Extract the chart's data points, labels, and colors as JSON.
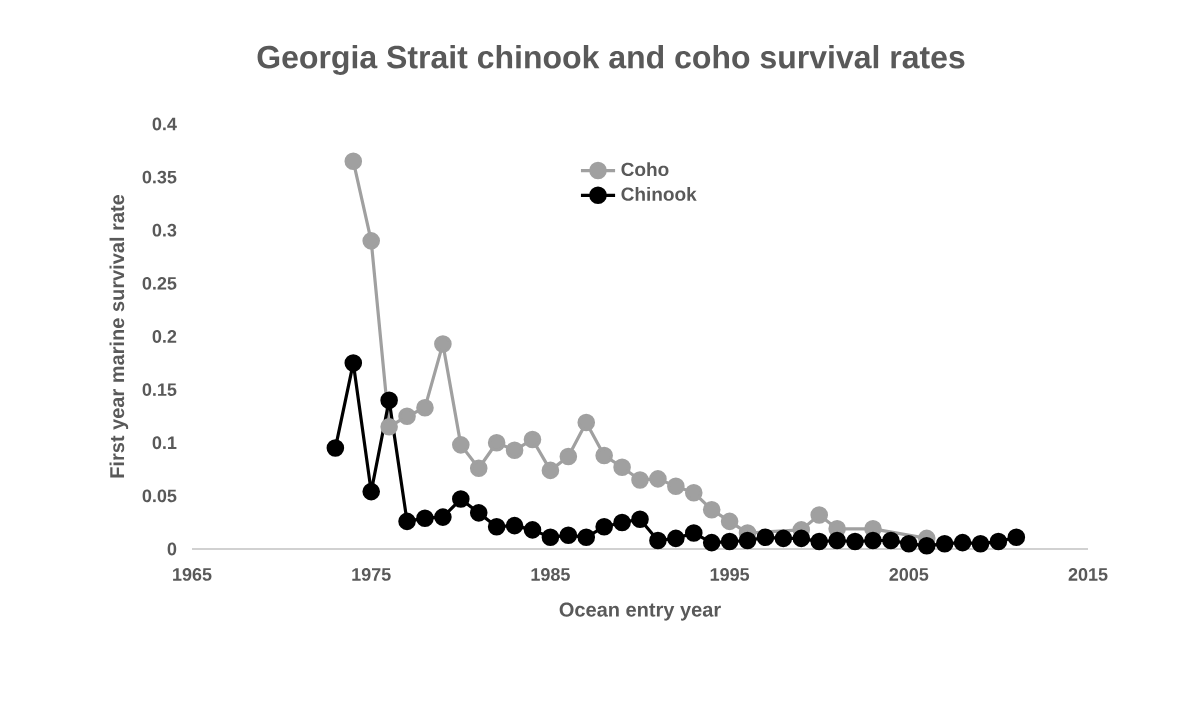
{
  "chart_data": {
    "type": "line",
    "title": "Georgia Strait chinook and coho survival rates",
    "xlabel": "Ocean entry year",
    "ylabel": "First year marine survival rate",
    "xlim": [
      1965,
      2015
    ],
    "xticks": [
      1965,
      1975,
      1985,
      1995,
      2005,
      2015
    ],
    "ylim": [
      0,
      0.4
    ],
    "yticks": [
      0,
      0.05,
      0.1,
      0.15,
      0.2,
      0.25,
      0.3,
      0.35,
      0.4
    ],
    "legend": "top",
    "marker": "circle",
    "line_style": "solid",
    "series": [
      {
        "name": "Coho",
        "color": "#a0a0a0",
        "x": [
          1974,
          1975,
          1976,
          1977,
          1978,
          1979,
          1980,
          1981,
          1982,
          1983,
          1984,
          1985,
          1986,
          1987,
          1988,
          1989,
          1990,
          1991,
          1992,
          1993,
          1994,
          1995,
          1996,
          1997,
          1998,
          1999,
          2000,
          2001,
          2002,
          2003,
          2004,
          2005,
          2006
        ],
        "values": [
          0.365,
          0.29,
          0.115,
          0.125,
          0.133,
          0.193,
          0.098,
          0.076,
          0.1,
          0.093,
          0.103,
          0.074,
          0.087,
          0.119,
          0.088,
          0.077,
          0.065,
          0.066,
          0.059,
          0.053,
          0.037,
          0.026,
          0.015,
          null,
          null,
          0.018,
          0.032,
          0.019,
          null,
          0.019,
          null,
          null,
          0.01
        ]
      },
      {
        "name": "Chinook",
        "color": "#000000",
        "x": [
          1973,
          1974,
          1975,
          1976,
          1977,
          1978,
          1979,
          1980,
          1981,
          1982,
          1983,
          1984,
          1985,
          1986,
          1987,
          1988,
          1989,
          1990,
          1991,
          1992,
          1993,
          1994,
          1995,
          1996,
          1997,
          1998,
          1999,
          2000,
          2001,
          2002,
          2003,
          2004,
          2005,
          2006,
          2007,
          2008,
          2009,
          2010,
          2011
        ],
        "values": [
          0.095,
          0.175,
          0.054,
          0.14,
          0.026,
          0.029,
          0.03,
          0.047,
          0.034,
          0.021,
          0.022,
          0.018,
          0.011,
          0.013,
          0.011,
          0.021,
          0.025,
          0.028,
          0.008,
          0.01,
          0.015,
          0.006,
          0.007,
          0.008,
          0.011,
          0.01,
          0.01,
          0.007,
          0.008,
          0.007,
          0.008,
          0.008,
          0.005,
          0.003,
          0.005,
          0.006,
          0.005,
          0.007,
          0.011
        ]
      }
    ]
  }
}
